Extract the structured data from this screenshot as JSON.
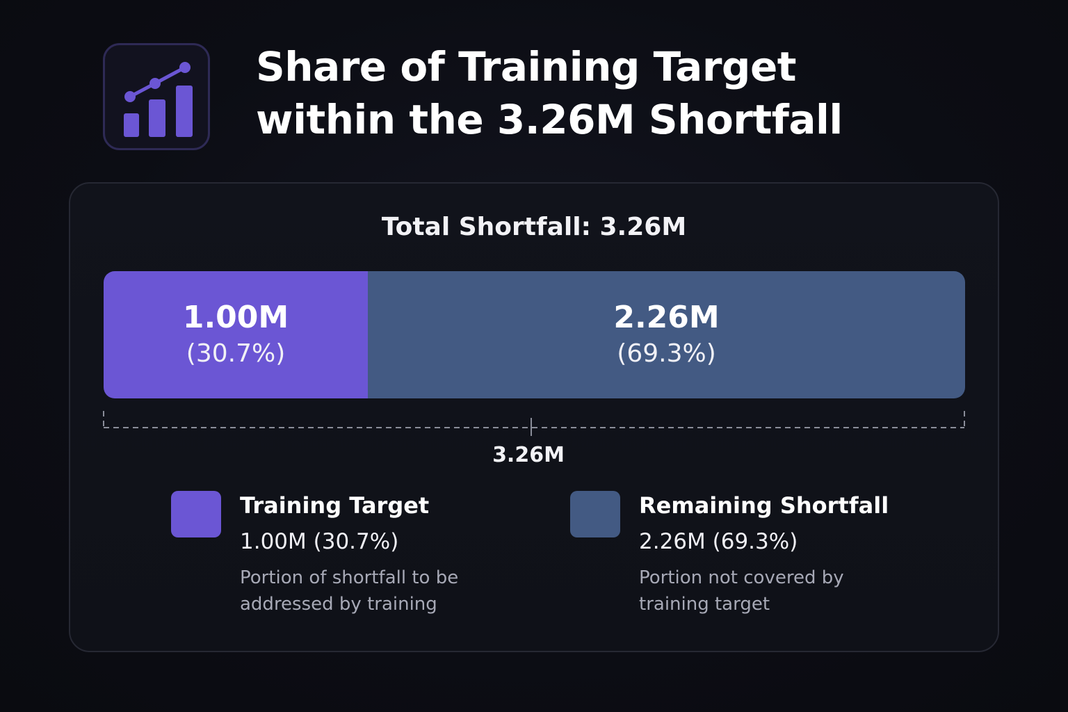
{
  "title": {
    "line1": "Share of Training Target",
    "line2": "within the 3.26M Shortfall"
  },
  "icon": "bar-line-chart-icon",
  "colors": {
    "accent": "#6b56d4",
    "remaining": "#435a83",
    "background": "#0c0d14"
  },
  "chart_data": {
    "type": "bar",
    "subtype": "stacked-horizontal-100",
    "title": "Total Shortfall: 3.26M",
    "total": 3.26,
    "total_label": "3.26M",
    "unit": "M",
    "segments": [
      {
        "name": "Training Target",
        "value": 1.0,
        "value_label": "1.00M",
        "percent": 30.7,
        "percent_label": "(30.7%)",
        "legend_value": "1.00M (30.7%)",
        "description": "Portion of shortfall to be addressed by training",
        "color": "#6b56d4"
      },
      {
        "name": "Remaining Shortfall",
        "value": 2.26,
        "value_label": "2.26M",
        "percent": 69.3,
        "percent_label": "(69.3%)",
        "legend_value": "2.26M (69.3%)",
        "description": "Portion not covered by training target",
        "color": "#435a83"
      }
    ],
    "legend_placement": "bottom",
    "grid": false
  }
}
